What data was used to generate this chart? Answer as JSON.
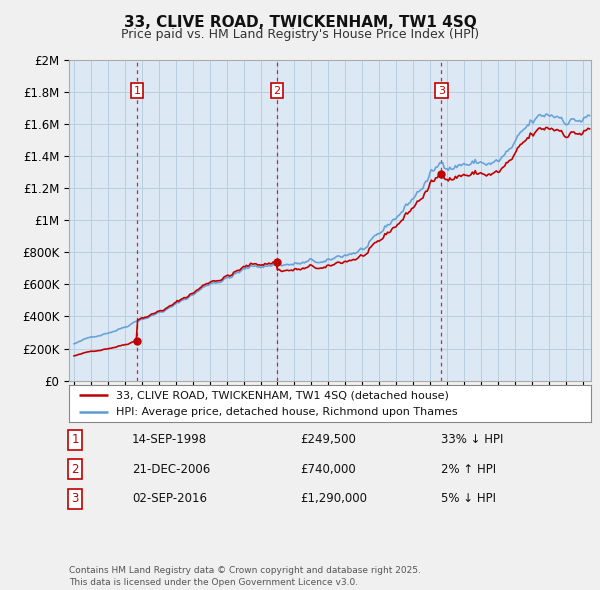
{
  "title": "33, CLIVE ROAD, TWICKENHAM, TW1 4SQ",
  "subtitle": "Price paid vs. HM Land Registry's House Price Index (HPI)",
  "ylabel_vals": [
    "£0",
    "£200K",
    "£400K",
    "£600K",
    "£800K",
    "£1M",
    "£1.2M",
    "£1.4M",
    "£1.6M",
    "£1.8M",
    "£2M"
  ],
  "ylim": [
    0,
    2000000
  ],
  "yticks": [
    0,
    200000,
    400000,
    600000,
    800000,
    1000000,
    1200000,
    1400000,
    1600000,
    1800000,
    2000000
  ],
  "xmin": 1994.7,
  "xmax": 2025.5,
  "hpi_color": "#5b9bd5",
  "price_color": "#c00000",
  "vline_color": "#c00000",
  "transactions": [
    {
      "year": 1998.71,
      "price": 249500,
      "label": "1"
    },
    {
      "year": 2006.97,
      "price": 740000,
      "label": "2"
    },
    {
      "year": 2016.67,
      "price": 1290000,
      "label": "3"
    }
  ],
  "table_rows": [
    {
      "num": "1",
      "date": "14-SEP-1998",
      "price": "£249,500",
      "hpi": "33% ↓ HPI"
    },
    {
      "num": "2",
      "date": "21-DEC-2006",
      "price": "£740,000",
      "hpi": "2% ↑ HPI"
    },
    {
      "num": "3",
      "date": "02-SEP-2016",
      "price": "£1,290,000",
      "hpi": "5% ↓ HPI"
    }
  ],
  "legend_line1": "33, CLIVE ROAD, TWICKENHAM, TW1 4SQ (detached house)",
  "legend_line2": "HPI: Average price, detached house, Richmond upon Thames",
  "footer": "Contains HM Land Registry data © Crown copyright and database right 2025.\nThis data is licensed under the Open Government Licence v3.0.",
  "bg_color": "#f0f0f0",
  "plot_bg_color": "#dce9f5",
  "grid_color": "#b8cfe0"
}
